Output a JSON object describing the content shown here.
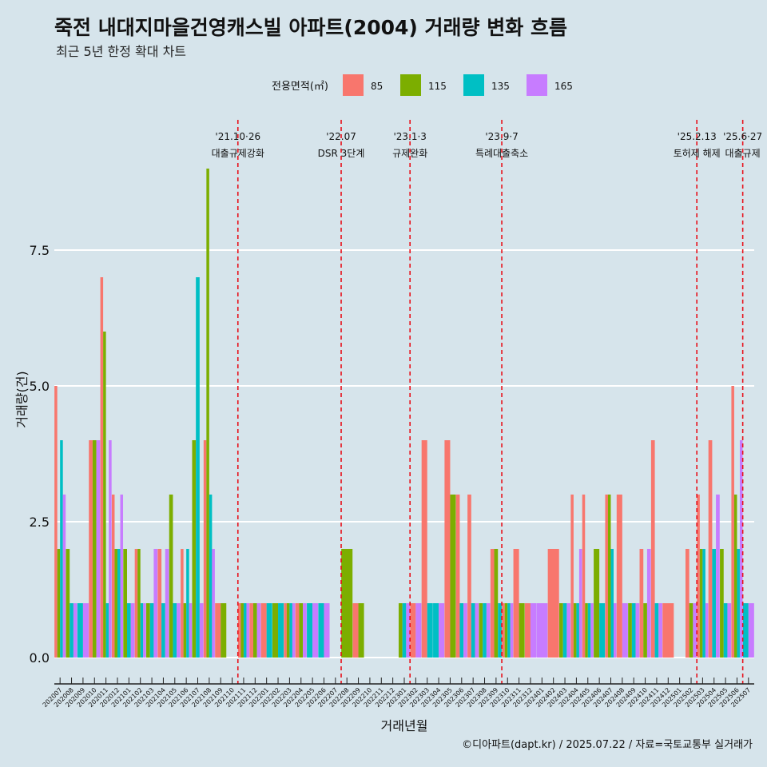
{
  "chart_data": {
    "type": "bar",
    "title": "죽전 내대지마을건영캐스빌 아파트(2004) 거래량 변화 흐름",
    "subtitle": "최근 5년 한정 확대 차트",
    "xlabel": "거래년월",
    "ylabel": "거래량(건)",
    "caption": "©디아파트(dapt.kr) / 2025.07.22 / 자료=국토교통부 실거래가",
    "legend": {
      "title": "전용면적(㎡)",
      "position": "top"
    },
    "ylim": [
      -0.5,
      9.6
    ],
    "yticks": [
      {
        "value": 0,
        "label": "0.0"
      },
      {
        "value": 2.5,
        "label": "2.5"
      },
      {
        "value": 5,
        "label": "5.0"
      },
      {
        "value": 7.5,
        "label": "7.5"
      }
    ],
    "grid": "horizontal",
    "categories": [
      "202007",
      "202008",
      "202009",
      "202010",
      "202011",
      "202012",
      "202101",
      "202102",
      "202103",
      "202104",
      "202105",
      "202106",
      "202107",
      "202108",
      "202109",
      "202110",
      "202111",
      "202112",
      "202201",
      "202202",
      "202203",
      "202204",
      "202205",
      "202206",
      "202207",
      "202208",
      "202209",
      "202210",
      "202211",
      "202212",
      "202301",
      "202302",
      "202303",
      "202304",
      "202305",
      "202306",
      "202307",
      "202308",
      "202309",
      "202310",
      "202311",
      "202312",
      "202401",
      "202402",
      "202403",
      "202404",
      "202405",
      "202406",
      "202407",
      "202408",
      "202409",
      "202410",
      "202411",
      "202412",
      "202501",
      "202502",
      "202503",
      "202504",
      "202505",
      "202506",
      "202507"
    ],
    "series": [
      {
        "name": "85",
        "color": "#f8766d",
        "values": [
          5,
          0,
          0,
          4,
          7,
          3,
          0,
          2,
          0,
          2,
          0,
          2,
          0,
          4,
          1,
          0,
          1,
          1,
          1,
          0,
          1,
          1,
          0,
          0,
          0,
          0,
          1,
          0,
          0,
          0,
          0,
          1,
          4,
          0,
          4,
          3,
          3,
          0,
          2,
          1,
          2,
          1,
          0,
          2,
          0,
          3,
          3,
          0,
          3,
          3,
          0,
          2,
          4,
          1,
          0,
          2,
          3,
          4,
          0,
          5,
          0
        ]
      },
      {
        "name": "115",
        "color": "#7cae00",
        "values": [
          2,
          2,
          0,
          4,
          6,
          2,
          2,
          2,
          1,
          0,
          3,
          1,
          4,
          9,
          1,
          0,
          1,
          1,
          0,
          1,
          1,
          1,
          0,
          0,
          0,
          2,
          1,
          0,
          0,
          0,
          1,
          0,
          0,
          0,
          3,
          0,
          0,
          1,
          2,
          1,
          1,
          0,
          0,
          0,
          1,
          1,
          1,
          2,
          3,
          0,
          1,
          1,
          0,
          0,
          0,
          1,
          2,
          0,
          2,
          3,
          0
        ]
      },
      {
        "name": "135",
        "color": "#00bfc4",
        "values": [
          4,
          1,
          1,
          0,
          1,
          2,
          1,
          1,
          1,
          1,
          1,
          2,
          7,
          3,
          0,
          0,
          1,
          0,
          1,
          1,
          1,
          0,
          1,
          1,
          0,
          0,
          0,
          0,
          0,
          0,
          1,
          0,
          1,
          1,
          0,
          1,
          1,
          1,
          1,
          1,
          0,
          0,
          0,
          0,
          1,
          1,
          1,
          1,
          2,
          0,
          1,
          0,
          1,
          0,
          0,
          0,
          2,
          2,
          1,
          2,
          1
        ]
      },
      {
        "name": "165",
        "color": "#c77cff",
        "values": [
          3,
          1,
          1,
          4,
          4,
          3,
          1,
          1,
          2,
          2,
          1,
          1,
          1,
          2,
          0,
          0,
          1,
          1,
          0,
          0,
          1,
          1,
          1,
          1,
          0,
          0,
          0,
          0,
          0,
          0,
          1,
          1,
          0,
          1,
          0,
          1,
          1,
          1,
          0,
          1,
          0,
          1,
          1,
          0,
          1,
          2,
          1,
          0,
          1,
          1,
          1,
          2,
          1,
          0,
          0,
          1,
          1,
          3,
          1,
          4,
          1
        ]
      }
    ],
    "events": [
      {
        "date": "'21.10·26",
        "label": "대출규제강화",
        "after_category": "202110"
      },
      {
        "date": "'22.07",
        "label": "DSR 3단계",
        "after_category": "202207"
      },
      {
        "date": "'23.1·3",
        "label": "규제완화",
        "after_category": "202301"
      },
      {
        "date": "'23.9·7",
        "label": "특례대출축소",
        "after_category": "202309"
      },
      {
        "date": "'25.2.13",
        "label": "토허제 해제",
        "after_category": "202502"
      },
      {
        "date": "'25.6·27",
        "label": "대출규제",
        "after_category": "202506"
      }
    ]
  }
}
